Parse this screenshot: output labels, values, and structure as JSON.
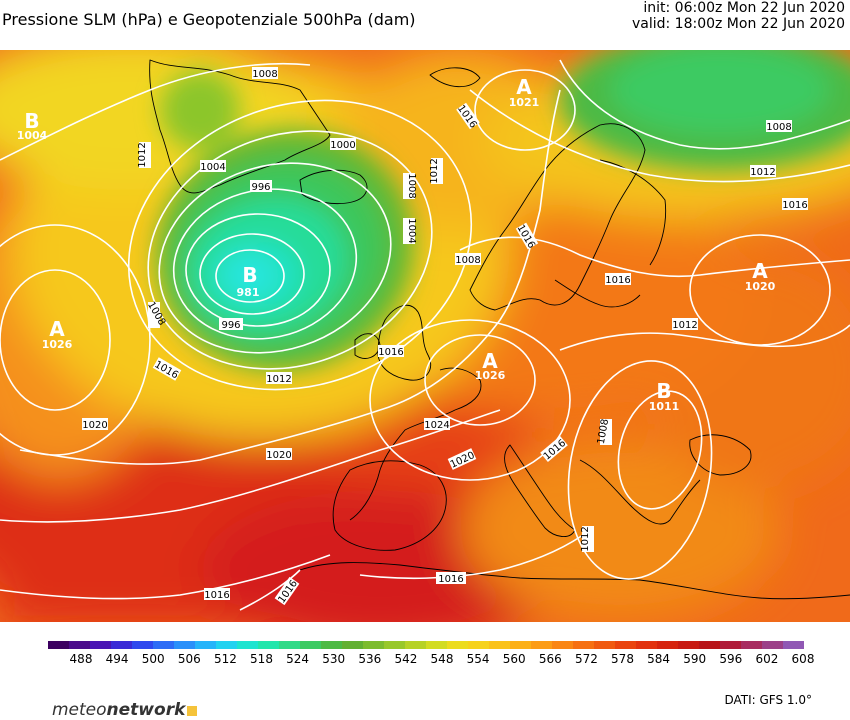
{
  "header": {
    "title": "Pressione SLM (hPa) e Geopotenziale 500hPa (dam)",
    "init": "init: 06:00z Mon 22 Jun 2020",
    "valid": "valid: 18:00z Mon 22 Jun 2020"
  },
  "map": {
    "pressure_centers": [
      {
        "type": "low",
        "letter": "B",
        "value": "981"
      },
      {
        "type": "low",
        "letter": "B",
        "value": "1004"
      },
      {
        "type": "high",
        "letter": "A",
        "value": "1026"
      },
      {
        "type": "high",
        "letter": "A",
        "value": "1021"
      },
      {
        "type": "high",
        "letter": "A",
        "value": "1020"
      },
      {
        "type": "high",
        "letter": "A",
        "value": "1026"
      },
      {
        "type": "low",
        "letter": "B",
        "value": "1011"
      }
    ],
    "isobar_labels": [
      "1008",
      "1012",
      "1004",
      "1000",
      "996",
      "1008",
      "1004",
      "1012",
      "1016",
      "1016",
      "1008",
      "1012",
      "1016",
      "1016",
      "1012",
      "1008",
      "996",
      "1008",
      "1016",
      "1012",
      "1016",
      "1016",
      "1024",
      "1020",
      "1020",
      "1020",
      "1016",
      "1008",
      "1016",
      "1012",
      "1016",
      "1016",
      "1020"
    ]
  },
  "legend": {
    "ticks": [
      "488",
      "494",
      "500",
      "506",
      "512",
      "518",
      "524",
      "530",
      "536",
      "542",
      "548",
      "554",
      "560",
      "566",
      "572",
      "578",
      "584",
      "590",
      "596",
      "602",
      "608"
    ],
    "colors": [
      "#3c0060",
      "#4a0a8a",
      "#4814b4",
      "#3a2ad6",
      "#2f48ee",
      "#2d6cf6",
      "#2a90fa",
      "#26b4fa",
      "#22d2f0",
      "#1ee4d0",
      "#22e6ac",
      "#30da88",
      "#3cca62",
      "#4cba44",
      "#62b032",
      "#7cbc2e",
      "#98c82a",
      "#b6d226",
      "#d2dc22",
      "#ecdc1e",
      "#f6d21c",
      "#fac21a",
      "#fcb018",
      "#fc9c16",
      "#fa8614",
      "#f67012",
      "#f05a10",
      "#ea440e",
      "#e2320e",
      "#d6240e",
      "#c81a12",
      "#b81418",
      "#b01c3a",
      "#a82c60",
      "#9c4088",
      "#9058b4"
    ],
    "units": "dam"
  },
  "branding": {
    "logo_part1": "meteo",
    "logo_part2": "network",
    "source": "DATI: GFS 1.0°"
  }
}
